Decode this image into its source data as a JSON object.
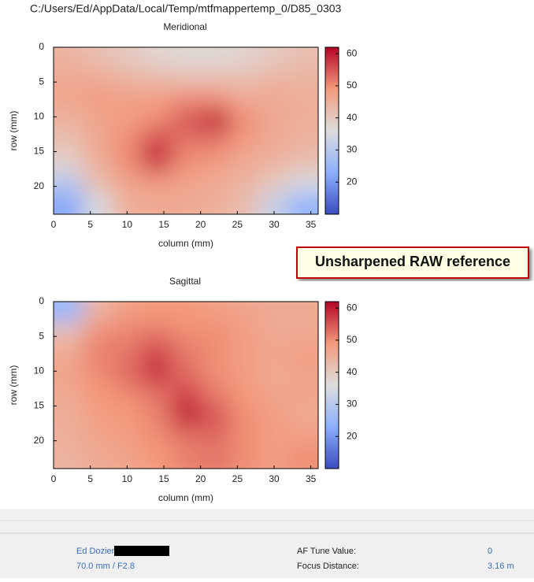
{
  "window_title": "C:/Users/Ed/AppData/Local/Temp/mtfmappertemp_0/D85_0303",
  "annotation": "Unsharpened RAW reference",
  "chart_data": [
    {
      "type": "heatmap",
      "title": "Meridional",
      "x_label": "column (mm)",
      "y_label": "row (mm)",
      "x": [
        2,
        6,
        10,
        14,
        18,
        22,
        26,
        30,
        34
      ],
      "y": [
        1.5,
        4.5,
        7.5,
        10.5,
        13.5,
        16.5,
        19.5,
        22.5
      ],
      "z": [
        [
          44,
          42,
          40,
          38,
          37,
          37,
          38,
          40,
          42
        ],
        [
          46,
          46,
          44,
          43,
          42,
          42,
          42,
          44,
          44
        ],
        [
          47,
          48,
          48,
          48,
          50,
          50,
          46,
          46,
          45
        ],
        [
          44,
          47,
          48,
          50,
          55,
          60,
          50,
          46,
          45
        ],
        [
          42,
          46,
          50,
          57,
          52,
          52,
          48,
          46,
          44
        ],
        [
          38,
          45,
          50,
          58,
          50,
          48,
          46,
          44,
          42
        ],
        [
          30,
          42,
          47,
          48,
          47,
          46,
          44,
          40,
          35
        ],
        [
          22,
          35,
          45,
          46,
          46,
          45,
          42,
          32,
          24
        ]
      ],
      "xlim": [
        0,
        36
      ],
      "ylim": [
        0,
        24
      ],
      "xticks": [
        0,
        5,
        10,
        15,
        20,
        25,
        30,
        35
      ],
      "yticks": [
        0,
        5,
        10,
        15,
        20
      ],
      "y_inverted": true,
      "colormap": "coolwarm",
      "colorbar_lim": [
        10,
        62
      ],
      "colorbar_ticks": [
        20,
        30,
        40,
        50,
        60
      ]
    },
    {
      "type": "heatmap",
      "title": "Sagittal",
      "x_label": "column (mm)",
      "y_label": "row (mm)",
      "x": [
        2,
        6,
        10,
        14,
        18,
        22,
        26,
        30,
        34
      ],
      "y": [
        1.5,
        4.5,
        7.5,
        10.5,
        13.5,
        16.5,
        19.5,
        22.5
      ],
      "z": [
        [
          25,
          44,
          48,
          49,
          49,
          48,
          47,
          46,
          46
        ],
        [
          42,
          50,
          51,
          52,
          50,
          50,
          48,
          46,
          46
        ],
        [
          46,
          51,
          52,
          57,
          52,
          50,
          48,
          47,
          48
        ],
        [
          47,
          50,
          53,
          58,
          53,
          50,
          48,
          46,
          47
        ],
        [
          46,
          49,
          50,
          52,
          57,
          52,
          49,
          47,
          47
        ],
        [
          45,
          48,
          49,
          51,
          60,
          55,
          50,
          48,
          46
        ],
        [
          45,
          47,
          48,
          50,
          52,
          53,
          50,
          48,
          48
        ],
        [
          44,
          46,
          47,
          49,
          51,
          52,
          50,
          48,
          50
        ]
      ],
      "xlim": [
        0,
        36
      ],
      "ylim": [
        0,
        24
      ],
      "xticks": [
        0,
        5,
        10,
        15,
        20,
        25,
        30,
        35
      ],
      "yticks": [
        0,
        5,
        10,
        15,
        20
      ],
      "y_inverted": true,
      "colormap": "coolwarm",
      "colorbar_lim": [
        10,
        62
      ],
      "colorbar_ticks": [
        20,
        30,
        40,
        50,
        60
      ]
    }
  ],
  "footer": {
    "photographer": "Ed Dozier",
    "lens": "70.0 mm / F2.8",
    "af_tune_label": "AF Tune Value:",
    "af_tune_value": 0,
    "focus_distance_label": "Focus Distance:",
    "focus_distance_value": "3.16 m"
  }
}
